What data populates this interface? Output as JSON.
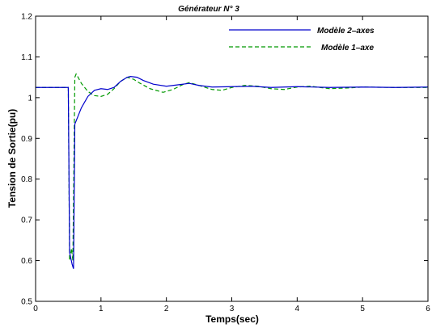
{
  "chart_data": {
    "type": "line",
    "title": "Générateur N° 3",
    "xlabel": "Temps(sec)",
    "ylabel": "Tension de Sortie(pu)",
    "xlim": [
      0,
      6
    ],
    "ylim": [
      0.5,
      1.2
    ],
    "xticks": [
      0,
      1,
      2,
      3,
      4,
      5,
      6
    ],
    "yticks": [
      0.5,
      0.6,
      0.7,
      0.8,
      0.9,
      1,
      1.1,
      1.2
    ],
    "xtick_labels": [
      "0",
      "1",
      "2",
      "3",
      "4",
      "5",
      "6"
    ],
    "ytick_labels": [
      "0.5",
      "0.6",
      "0.7",
      "0.8",
      "0.9",
      "1",
      "1.1",
      "1.2"
    ],
    "grid": false,
    "legend_position": "top-right",
    "series": [
      {
        "name": "Modèle 2–axes",
        "color": "#0000cc",
        "dash": "solid",
        "x": [
          0,
          0.5,
          0.52,
          0.56,
          0.58,
          0.6,
          0.65,
          0.7,
          0.8,
          0.9,
          1.0,
          1.1,
          1.2,
          1.3,
          1.4,
          1.45,
          1.55,
          1.65,
          1.8,
          2.0,
          2.2,
          2.35,
          2.5,
          2.7,
          3.0,
          3.3,
          3.6,
          4.0,
          4.5,
          5.0,
          5.5,
          6.0
        ],
        "y": [
          1.025,
          1.025,
          0.62,
          0.59,
          0.58,
          0.935,
          0.955,
          0.975,
          1.003,
          1.018,
          1.022,
          1.02,
          1.025,
          1.04,
          1.05,
          1.052,
          1.05,
          1.042,
          1.033,
          1.028,
          1.032,
          1.035,
          1.03,
          1.026,
          1.027,
          1.028,
          1.025,
          1.027,
          1.025,
          1.026,
          1.025,
          1.026
        ]
      },
      {
        "name": "Modèle 1–axe",
        "color": "#009900",
        "dash": "dashed",
        "x": [
          0,
          0.5,
          0.52,
          0.55,
          0.57,
          0.6,
          0.62,
          0.65,
          0.7,
          0.8,
          0.9,
          1.0,
          1.1,
          1.2,
          1.3,
          1.4,
          1.5,
          1.6,
          1.75,
          1.95,
          2.1,
          2.25,
          2.35,
          2.5,
          2.7,
          2.85,
          3.0,
          3.2,
          3.4,
          3.6,
          3.8,
          4.0,
          4.2,
          4.5,
          4.8,
          5.0,
          5.5,
          6.0
        ],
        "y": [
          1.025,
          1.025,
          0.6,
          0.63,
          0.6,
          1.05,
          1.058,
          1.05,
          1.035,
          1.015,
          1.005,
          1.003,
          1.008,
          1.022,
          1.04,
          1.05,
          1.045,
          1.035,
          1.022,
          1.013,
          1.02,
          1.032,
          1.037,
          1.03,
          1.02,
          1.018,
          1.025,
          1.03,
          1.028,
          1.022,
          1.02,
          1.026,
          1.028,
          1.022,
          1.024,
          1.026,
          1.025,
          1.025
        ]
      }
    ]
  }
}
